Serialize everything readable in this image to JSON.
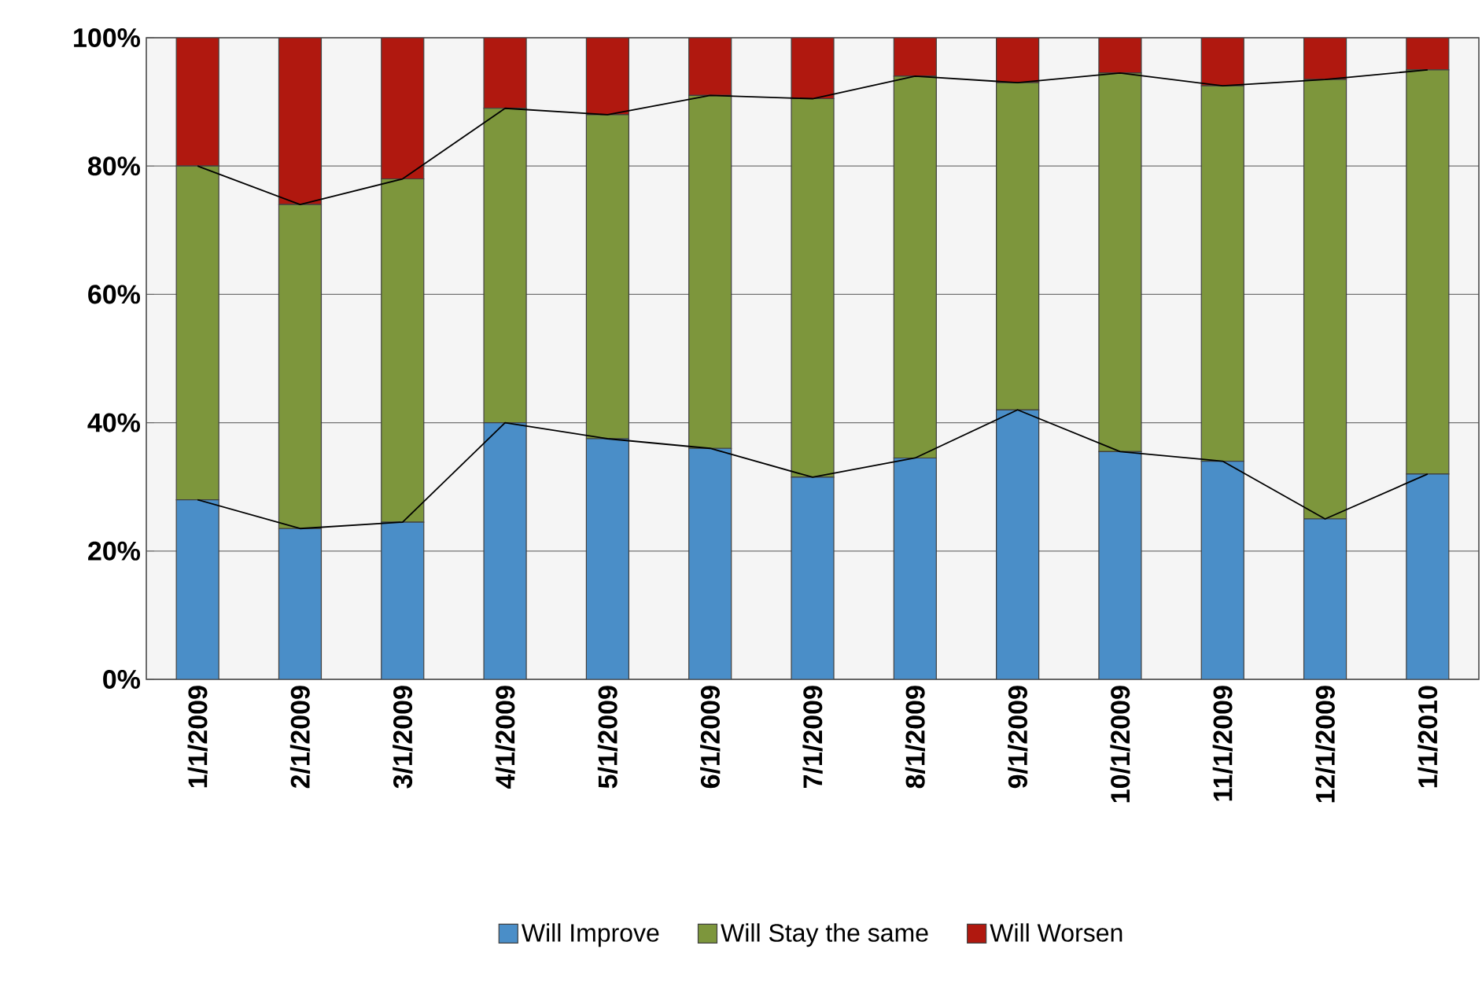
{
  "chart_data": {
    "type": "bar",
    "stacked": true,
    "categories": [
      "1/1/2009",
      "2/1/2009",
      "3/1/2009",
      "4/1/2009",
      "5/1/2009",
      "6/1/2009",
      "7/1/2009",
      "8/1/2009",
      "9/1/2009",
      "10/1/2009",
      "11/1/2009",
      "12/1/2009",
      "1/1/2010"
    ],
    "series": [
      {
        "name": "Will Improve",
        "color": "#4a8ec8",
        "values": [
          28,
          23.5,
          24.5,
          40,
          37.5,
          36,
          31.5,
          34.5,
          42,
          35.5,
          34,
          25,
          32
        ]
      },
      {
        "name": "Will Stay the same",
        "color": "#7d963c",
        "values": [
          52,
          50.5,
          53.5,
          49,
          50.5,
          55,
          59,
          59.5,
          51,
          59,
          58.5,
          68.5,
          63
        ]
      },
      {
        "name": "Will Worsen",
        "color": "#b0180f",
        "values": [
          20,
          26,
          22,
          11,
          12,
          9,
          9.5,
          6,
          7,
          5.5,
          7.5,
          6.5,
          5
        ]
      },
      {
        "type": "line",
        "color": "#000000",
        "values": [
          28,
          23.5,
          24.5,
          40,
          37.5,
          36,
          31.5,
          34.5,
          42,
          35.5,
          34,
          25,
          32
        ]
      },
      {
        "type": "line",
        "color": "#000000",
        "values": [
          80,
          74,
          78,
          89,
          88,
          91,
          90.5,
          94,
          93,
          94.5,
          92.5,
          93.5,
          95
        ]
      }
    ],
    "ylim": [
      0,
      100
    ],
    "yticks": [
      {
        "value": 0,
        "label": "0%"
      },
      {
        "value": 20,
        "label": "20%"
      },
      {
        "value": 40,
        "label": "40%"
      },
      {
        "value": 60,
        "label": "60%"
      },
      {
        "value": 80,
        "label": "80%"
      },
      {
        "value": 100,
        "label": "100%"
      }
    ],
    "grid": "y",
    "legend": "bottom"
  }
}
